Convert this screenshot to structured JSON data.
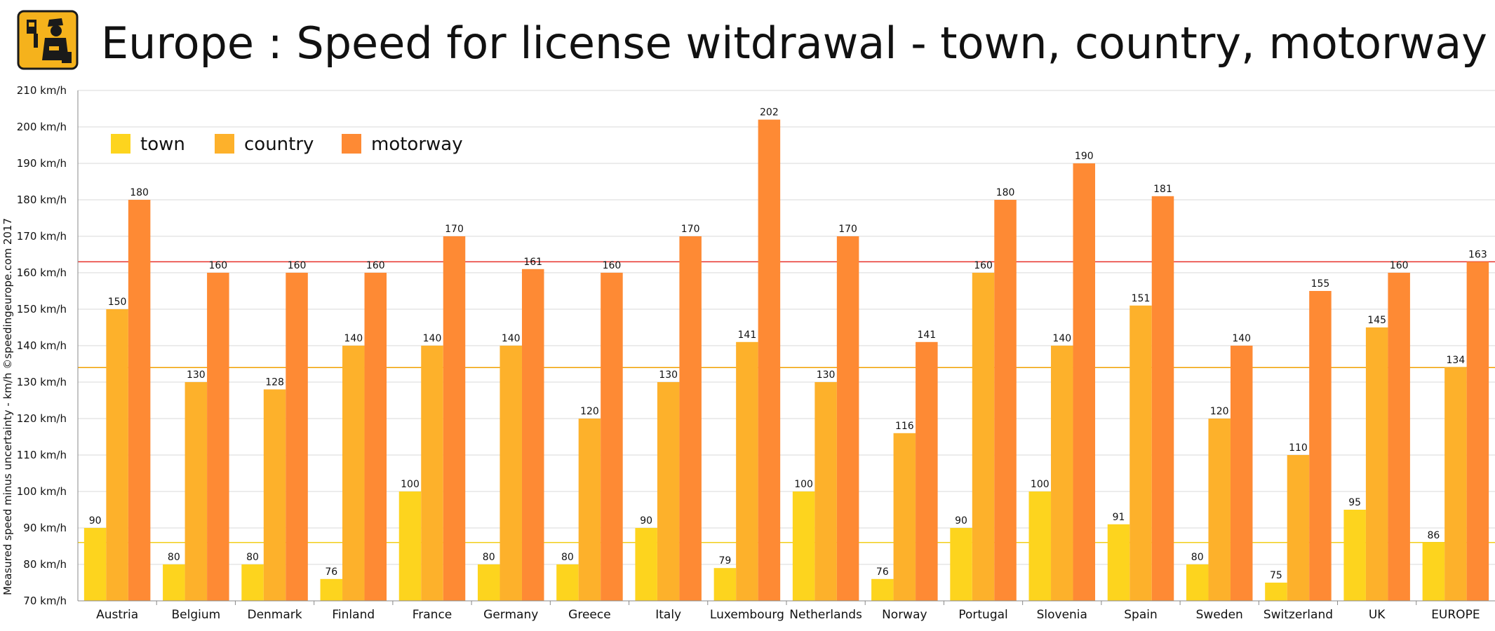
{
  "header": {
    "title": "Europe : Speed for license witdrawal - town, country, motorway",
    "logo_icon": "speed-camera-officer-icon"
  },
  "colors": {
    "town": "#FDD41E",
    "country": "#FDB12B",
    "motorway": "#FE8A34",
    "ref_motorway": "#E8312A",
    "ref_country": "#F0A000",
    "ref_town": "#F2CE1A",
    "grid": "#d9d9d9",
    "logo_bg": "#F5B21C"
  },
  "chart_data": {
    "type": "bar",
    "ylabel": "Measured speed minus uncertainty - km/h  ©speedingeurope.com 2017",
    "ylim": [
      70,
      210
    ],
    "yticks": [
      {
        "value": 70,
        "label": "70 km/h"
      },
      {
        "value": 80,
        "label": "80 km/h"
      },
      {
        "value": 90,
        "label": "90 km/h"
      },
      {
        "value": 100,
        "label": "100 km/h"
      },
      {
        "value": 110,
        "label": "110 km/h"
      },
      {
        "value": 120,
        "label": "120 km/h"
      },
      {
        "value": 130,
        "label": "130 km/h"
      },
      {
        "value": 140,
        "label": "140 km/h"
      },
      {
        "value": 150,
        "label": "150 km/h"
      },
      {
        "value": 160,
        "label": "160 km/h"
      },
      {
        "value": 170,
        "label": "170 km/h"
      },
      {
        "value": 180,
        "label": "180 km/h"
      },
      {
        "value": 190,
        "label": "190 km/h"
      },
      {
        "value": 200,
        "label": "200 km/h"
      },
      {
        "value": 210,
        "label": "210 km/h"
      }
    ],
    "grid": true,
    "legend_position": "top-left",
    "categories": [
      "Austria",
      "Belgium",
      "Denmark",
      "Finland",
      "France",
      "Germany",
      "Greece",
      "Italy",
      "Luxembourg",
      "Netherlands",
      "Norway",
      "Portugal",
      "Slovenia",
      "Spain",
      "Sweden",
      "Switzerland",
      "UK",
      "EUROPE"
    ],
    "series": [
      {
        "name": "town",
        "values": [
          90,
          80,
          80,
          76,
          100,
          80,
          80,
          90,
          79,
          100,
          76,
          90,
          100,
          91,
          80,
          75,
          95,
          86
        ]
      },
      {
        "name": "country",
        "values": [
          150,
          130,
          128,
          140,
          140,
          140,
          120,
          130,
          141,
          130,
          116,
          160,
          140,
          151,
          120,
          110,
          145,
          134
        ]
      },
      {
        "name": "motorway",
        "values": [
          180,
          160,
          160,
          160,
          170,
          161,
          160,
          170,
          202,
          170,
          141,
          180,
          190,
          181,
          140,
          155,
          160,
          163
        ]
      }
    ],
    "reference_lines": [
      {
        "series": "motorway",
        "value": 163
      },
      {
        "series": "country",
        "value": 134
      },
      {
        "series": "town",
        "value": 86
      }
    ]
  }
}
